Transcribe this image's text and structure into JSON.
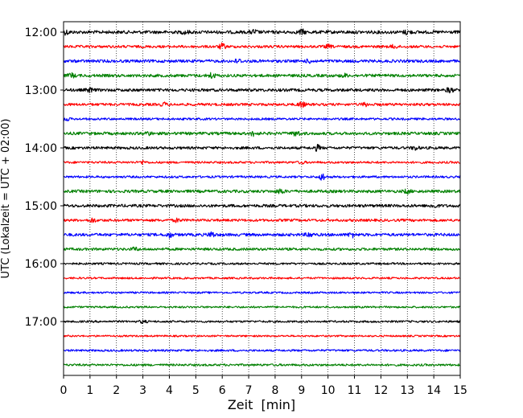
{
  "chart_data": {
    "type": "line",
    "subtype": "helicorder",
    "title": "",
    "xlabel": "Zeit  [min]",
    "ylabel": "UTC (Lokalzeit = UTC + 02:00)",
    "xlim": [
      0,
      15
    ],
    "x_ticks": [
      "0",
      "1",
      "2",
      "3",
      "4",
      "5",
      "6",
      "7",
      "8",
      "9",
      "10",
      "11",
      "12",
      "13",
      "14",
      "15"
    ],
    "y_ticks": [
      "12:00",
      "13:00",
      "14:00",
      "15:00",
      "16:00",
      "17:00"
    ],
    "grid": "vertical dotted at each minute",
    "trace_interval_minutes": 15,
    "trace_colors": [
      "#000000",
      "#ff0000",
      "#0000ff",
      "#008000"
    ],
    "traces": [
      {
        "start": "12:00",
        "color": "#000000",
        "amplitude": 0.22,
        "events": [
          {
            "x": 0.1,
            "amp": 0.25
          },
          {
            "x": 4.6,
            "amp": 0.2
          },
          {
            "x": 7.2,
            "amp": 0.25
          },
          {
            "x": 9.0,
            "amp": 0.3
          },
          {
            "x": 13.0,
            "amp": 0.25
          }
        ]
      },
      {
        "start": "12:15",
        "color": "#ff0000",
        "amplitude": 0.18,
        "events": [
          {
            "x": 6.0,
            "amp": 0.35
          },
          {
            "x": 10.0,
            "amp": 0.2
          },
          {
            "x": 12.5,
            "amp": 0.2
          }
        ]
      },
      {
        "start": "12:30",
        "color": "#0000ff",
        "amplitude": 0.2,
        "events": [
          {
            "x": 6.6,
            "amp": 0.25
          },
          {
            "x": 9.3,
            "amp": 0.2
          }
        ]
      },
      {
        "start": "12:45",
        "color": "#008000",
        "amplitude": 0.2,
        "events": [
          {
            "x": 0.3,
            "amp": 0.25
          },
          {
            "x": 5.6,
            "amp": 0.35
          },
          {
            "x": 10.6,
            "amp": 0.2
          }
        ]
      },
      {
        "start": "13:00",
        "color": "#000000",
        "amplitude": 0.2,
        "events": [
          {
            "x": 1.0,
            "amp": 0.25
          },
          {
            "x": 14.6,
            "amp": 0.3
          }
        ]
      },
      {
        "start": "13:15",
        "color": "#ff0000",
        "amplitude": 0.18,
        "events": [
          {
            "x": 3.8,
            "amp": 0.2
          },
          {
            "x": 9.0,
            "amp": 0.35
          },
          {
            "x": 11.4,
            "amp": 0.2
          }
        ]
      },
      {
        "start": "13:30",
        "color": "#0000ff",
        "amplitude": 0.15,
        "events": [
          {
            "x": 0.1,
            "amp": 0.2
          }
        ]
      },
      {
        "start": "13:45",
        "color": "#008000",
        "amplitude": 0.2,
        "events": [
          {
            "x": 3.2,
            "amp": 0.2
          },
          {
            "x": 7.2,
            "amp": 0.3
          },
          {
            "x": 8.8,
            "amp": 0.35
          }
        ]
      },
      {
        "start": "14:00",
        "color": "#000000",
        "amplitude": 0.18,
        "events": [
          {
            "x": 9.6,
            "amp": 0.35
          },
          {
            "x": 13.3,
            "amp": 0.25
          }
        ]
      },
      {
        "start": "14:15",
        "color": "#ff0000",
        "amplitude": 0.15,
        "events": [
          {
            "x": 3.0,
            "amp": 0.2
          },
          {
            "x": 9.0,
            "amp": 0.15
          }
        ]
      },
      {
        "start": "14:30",
        "color": "#0000ff",
        "amplitude": 0.15,
        "events": [
          {
            "x": 9.8,
            "amp": 0.45
          }
        ]
      },
      {
        "start": "14:45",
        "color": "#008000",
        "amplitude": 0.2,
        "events": [
          {
            "x": 8.2,
            "amp": 0.3
          },
          {
            "x": 13.0,
            "amp": 0.25
          }
        ]
      },
      {
        "start": "15:00",
        "color": "#000000",
        "amplitude": 0.2,
        "events": [
          {
            "x": 14.0,
            "amp": 0.25
          }
        ]
      },
      {
        "start": "15:15",
        "color": "#ff0000",
        "amplitude": 0.18,
        "events": [
          {
            "x": 1.1,
            "amp": 0.25
          },
          {
            "x": 4.3,
            "amp": 0.2
          }
        ]
      },
      {
        "start": "15:30",
        "color": "#0000ff",
        "amplitude": 0.2,
        "events": [
          {
            "x": 4.0,
            "amp": 0.3
          },
          {
            "x": 5.6,
            "amp": 0.35
          },
          {
            "x": 9.3,
            "amp": 0.3
          },
          {
            "x": 10.9,
            "amp": 0.3
          }
        ]
      },
      {
        "start": "15:45",
        "color": "#008000",
        "amplitude": 0.18,
        "events": [
          {
            "x": 2.7,
            "amp": 0.2
          }
        ]
      },
      {
        "start": "16:00",
        "color": "#000000",
        "amplitude": 0.14,
        "events": []
      },
      {
        "start": "16:15",
        "color": "#ff0000",
        "amplitude": 0.13,
        "events": []
      },
      {
        "start": "16:30",
        "color": "#0000ff",
        "amplitude": 0.13,
        "events": []
      },
      {
        "start": "16:45",
        "color": "#008000",
        "amplitude": 0.13,
        "events": []
      },
      {
        "start": "17:00",
        "color": "#000000",
        "amplitude": 0.14,
        "events": [
          {
            "x": 3.0,
            "amp": 0.18
          }
        ]
      },
      {
        "start": "17:15",
        "color": "#ff0000",
        "amplitude": 0.12,
        "events": []
      },
      {
        "start": "17:30",
        "color": "#0000ff",
        "amplitude": 0.14,
        "events": []
      },
      {
        "start": "17:45",
        "color": "#008000",
        "amplitude": 0.15,
        "events": []
      }
    ]
  }
}
